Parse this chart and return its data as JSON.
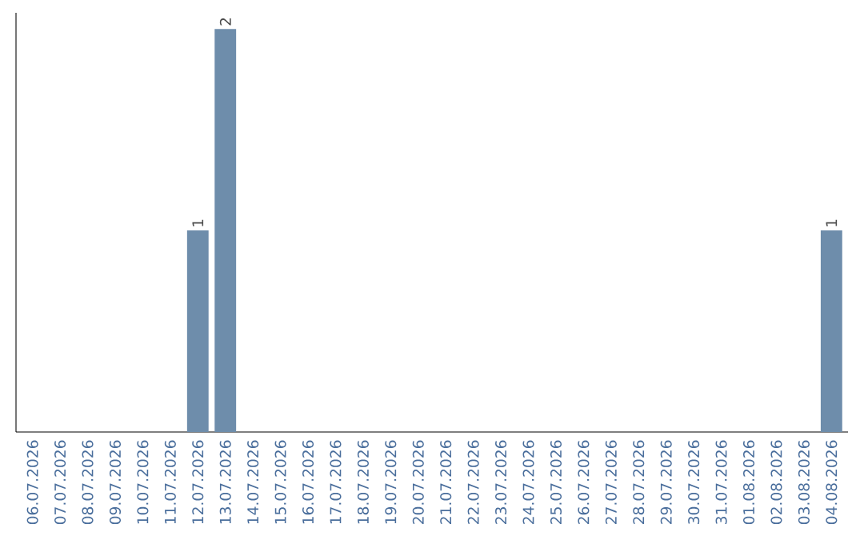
{
  "chart_data": {
    "type": "bar",
    "categories": [
      "06.07.2026",
      "07.07.2026",
      "08.07.2026",
      "09.07.2026",
      "10.07.2026",
      "11.07.2026",
      "12.07.2026",
      "13.07.2026",
      "14.07.2026",
      "15.07.2026",
      "16.07.2026",
      "17.07.2026",
      "18.07.2026",
      "19.07.2026",
      "20.07.2026",
      "21.07.2026",
      "22.07.2026",
      "23.07.2026",
      "24.07.2026",
      "25.07.2026",
      "26.07.2026",
      "27.07.2026",
      "28.07.2026",
      "29.07.2026",
      "30.07.2026",
      "31.07.2026",
      "01.08.2026",
      "02.08.2026",
      "03.08.2026",
      "04.08.2026"
    ],
    "values": [
      0,
      0,
      0,
      0,
      0,
      0,
      1,
      2,
      0,
      0,
      0,
      0,
      0,
      0,
      0,
      0,
      0,
      0,
      0,
      0,
      0,
      0,
      0,
      0,
      0,
      0,
      0,
      0,
      0,
      1
    ],
    "value_labels": [
      null,
      null,
      null,
      null,
      null,
      null,
      "1",
      "2",
      null,
      null,
      null,
      null,
      null,
      null,
      null,
      null,
      null,
      null,
      null,
      null,
      null,
      null,
      null,
      null,
      null,
      null,
      null,
      null,
      null,
      "1"
    ],
    "color": "#6e8dab",
    "tick_labels": "x"
  }
}
